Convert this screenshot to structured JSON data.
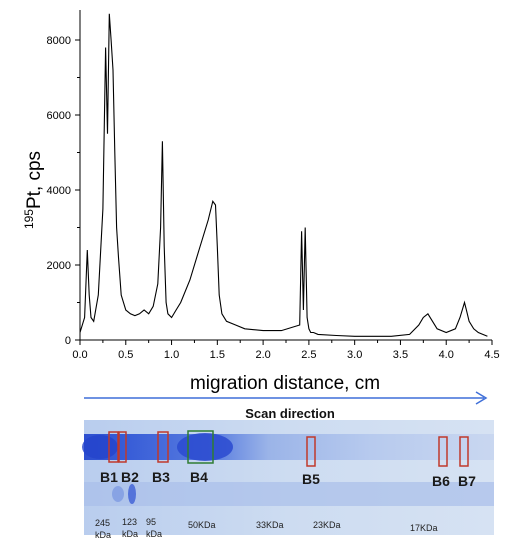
{
  "chart_data": {
    "type": "line",
    "xlabel": "migration distance, cm",
    "ylabel_sup": "195",
    "ylabel_main": "Pt, cps",
    "xlim": [
      0.0,
      4.5
    ],
    "ylim": [
      0,
      8800
    ],
    "x_ticks": [
      "0.0",
      "0.5",
      "1.0",
      "1.5",
      "2.0",
      "2.5",
      "3.0",
      "3.5",
      "4.0",
      "4.5"
    ],
    "y_ticks": [
      "0",
      "2000",
      "4000",
      "6000",
      "8000"
    ],
    "grid": false,
    "series": [
      {
        "x": [
          0.0,
          0.05,
          0.08,
          0.1,
          0.12,
          0.15,
          0.2,
          0.25,
          0.28,
          0.3,
          0.32,
          0.34,
          0.36,
          0.38,
          0.4,
          0.42,
          0.45,
          0.5,
          0.55,
          0.6,
          0.65,
          0.7,
          0.75,
          0.8,
          0.85,
          0.88,
          0.9,
          0.92,
          0.94,
          0.96,
          1.0,
          1.05,
          1.1,
          1.2,
          1.3,
          1.4,
          1.45,
          1.48,
          1.5,
          1.52,
          1.55,
          1.6,
          1.7,
          1.8,
          2.0,
          2.2,
          2.4,
          2.42,
          2.44,
          2.46,
          2.48,
          2.5,
          2.52,
          2.55,
          2.6,
          2.8,
          3.0,
          3.2,
          3.4,
          3.6,
          3.7,
          3.75,
          3.8,
          3.85,
          3.9,
          4.0,
          4.1,
          4.15,
          4.2,
          4.22,
          4.25,
          4.3,
          4.35,
          4.4,
          4.45
        ],
        "y": [
          200,
          600,
          2400,
          1200,
          600,
          500,
          1200,
          3500,
          7800,
          5500,
          8700,
          8000,
          7200,
          5000,
          3000,
          2200,
          1200,
          800,
          700,
          650,
          700,
          800,
          700,
          900,
          1500,
          3000,
          5300,
          2500,
          1000,
          700,
          600,
          800,
          1000,
          1600,
          2400,
          3200,
          3700,
          3600,
          2500,
          1200,
          700,
          500,
          400,
          300,
          250,
          250,
          400,
          2900,
          800,
          3000,
          600,
          300,
          200,
          200,
          150,
          120,
          100,
          100,
          100,
          150,
          400,
          600,
          700,
          500,
          300,
          200,
          300,
          600,
          1000,
          800,
          500,
          300,
          200,
          150,
          100
        ]
      }
    ]
  },
  "gel": {
    "scan_direction": "Scan direction",
    "bands": [
      "B1",
      "B2",
      "B3",
      "B4",
      "B5",
      "B6",
      "B7"
    ],
    "markers": [
      [
        "245",
        "kDa"
      ],
      [
        "123",
        "kDa"
      ],
      [
        "95",
        "kDa"
      ],
      [
        "50KDa"
      ],
      [
        "33KDa"
      ],
      [
        "23KDa"
      ],
      [
        "17KDa"
      ]
    ]
  },
  "colors": {
    "trace": "#000000",
    "arrow": "#3f6fd8",
    "gel_bg": "#c7d6ee",
    "band_dark": "#2d4fd0",
    "box_red": "#c0392b",
    "box_green": "#2f7d32"
  }
}
